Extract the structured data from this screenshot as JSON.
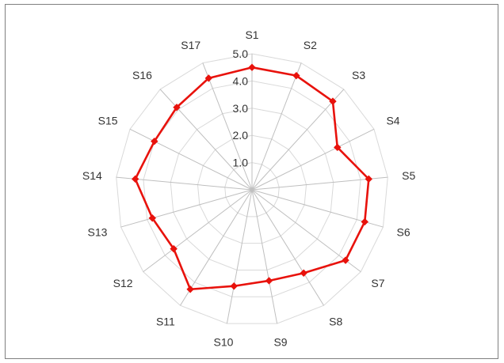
{
  "chart_data": {
    "type": "radar",
    "title": "",
    "categories": [
      "S1",
      "S2",
      "S3",
      "S4",
      "S5",
      "S6",
      "S7",
      "S8",
      "S9",
      "S10",
      "S11",
      "S12",
      "S13",
      "S14",
      "S15",
      "S16",
      "S17"
    ],
    "series": [
      {
        "values": [
          4.5,
          4.5,
          4.4,
          3.5,
          4.3,
          4.3,
          4.3,
          3.6,
          3.4,
          3.6,
          4.3,
          3.6,
          3.8,
          4.3,
          4.0,
          4.1,
          4.4
        ]
      }
    ],
    "rlim": [
      0,
      5
    ],
    "ticks": [
      {
        "value": 1,
        "label": "1.0"
      },
      {
        "value": 2,
        "label": "2.0"
      },
      {
        "value": 3,
        "label": "3.0"
      },
      {
        "value": 4,
        "label": "4.0"
      },
      {
        "value": 5,
        "label": "5.0"
      }
    ],
    "grid": true,
    "legend": "none",
    "colors": {
      "series": "#e8120c",
      "grid": "#d9d9d9",
      "spokes": "#bfbfbf",
      "text": "#333333"
    }
  }
}
